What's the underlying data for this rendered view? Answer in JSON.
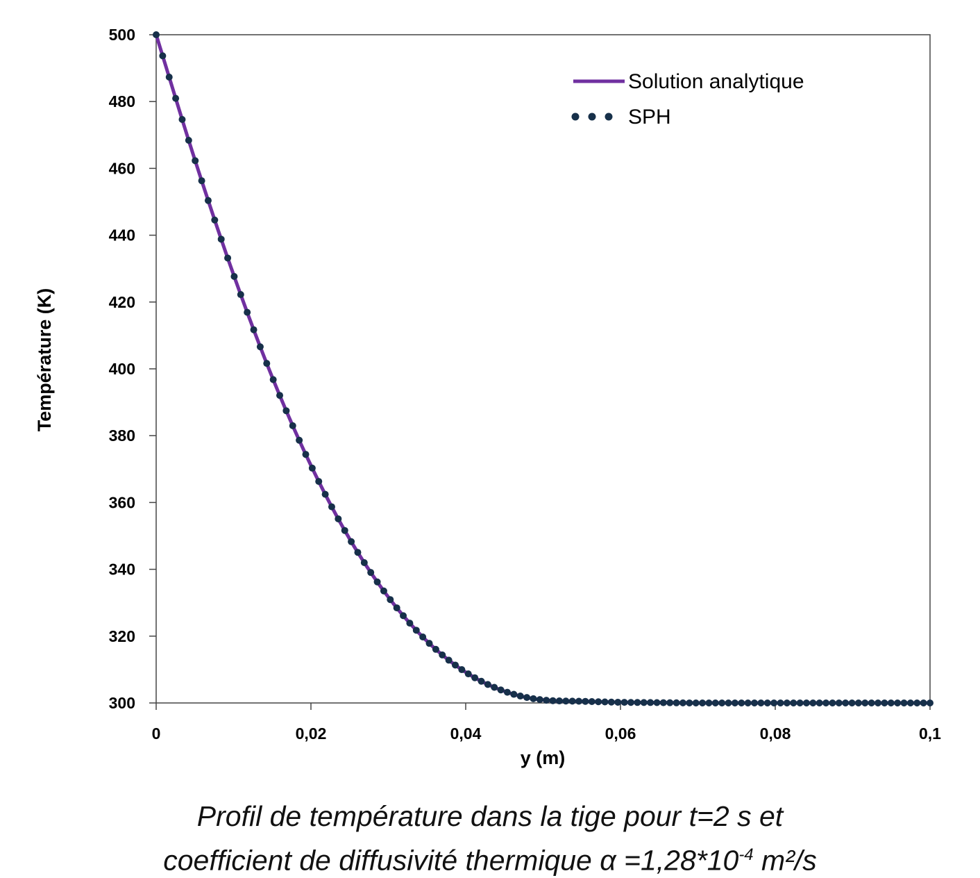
{
  "chart_data": {
    "type": "line",
    "xlabel": "y (m)",
    "ylabel": "Température (K)",
    "xlim": [
      0,
      0.1
    ],
    "ylim": [
      300,
      500
    ],
    "xticks": [
      0,
      0.02,
      0.04,
      0.06,
      0.08,
      0.1
    ],
    "xtick_labels": [
      "0",
      "0,02",
      "0,04",
      "0,06",
      "0,08",
      "0,1"
    ],
    "yticks": [
      300,
      320,
      340,
      360,
      380,
      400,
      420,
      440,
      460,
      480,
      500
    ],
    "ytick_labels": [
      "300",
      "320",
      "340",
      "360",
      "380",
      "400",
      "420",
      "440",
      "460",
      "480",
      "500"
    ],
    "grid": false,
    "legend_position": "top-right",
    "series": [
      {
        "name": "Solution analytique",
        "style": "solid-line",
        "color": "#7030a0",
        "x": [
          0,
          0.005,
          0.01,
          0.015,
          0.02,
          0.025,
          0.03,
          0.035,
          0.04,
          0.045,
          0.05,
          0.055,
          0.06,
          0.065,
          0.07,
          0.075,
          0.08,
          0.085,
          0.09,
          0.095,
          0.1
        ],
        "y": [
          500,
          462.6,
          428.2,
          397.5,
          371.1,
          349.1,
          331.7,
          318.5,
          309.2,
          303.5,
          300.9,
          300.5,
          300.2,
          300.1,
          300.0,
          300.0,
          300.0,
          300.0,
          300.0,
          300.0,
          300.0
        ]
      },
      {
        "name": "SPH",
        "style": "dots",
        "color": "#17304a",
        "x": [
          0,
          0.005,
          0.01,
          0.015,
          0.02,
          0.025,
          0.03,
          0.035,
          0.04,
          0.045,
          0.05,
          0.055,
          0.06,
          0.065,
          0.07,
          0.075,
          0.08,
          0.085,
          0.09,
          0.095,
          0.1
        ],
        "y": [
          500,
          462.6,
          428.2,
          397.5,
          371.1,
          349.1,
          331.7,
          318.5,
          309.2,
          303.5,
          300.9,
          300.5,
          300.2,
          300.1,
          300.0,
          300.0,
          300.0,
          300.0,
          300.0,
          300.0,
          300.0
        ]
      }
    ]
  },
  "caption": {
    "line1": "Profil de température dans la tige pour t=2 s et",
    "line2_prefix": "coefficient de diffusivité thermique α =1,28*10",
    "line2_exponent": "-4",
    "line2_suffix": " m²/s"
  }
}
